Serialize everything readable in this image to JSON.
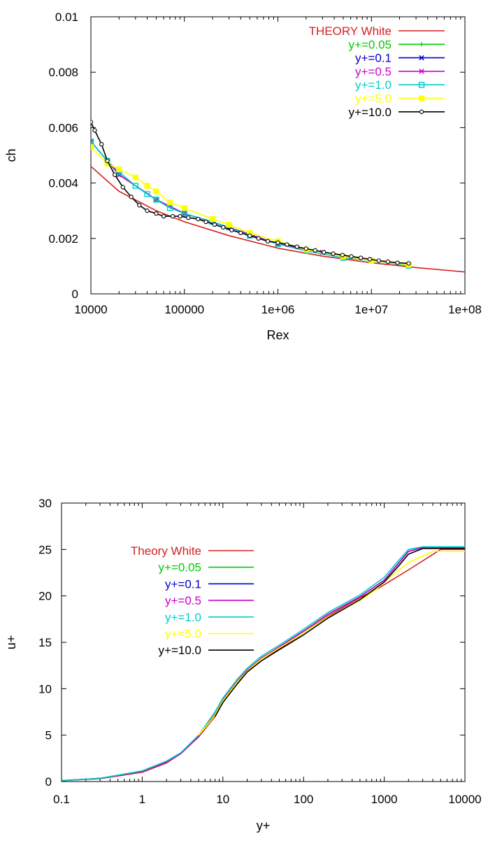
{
  "chart_data": [
    {
      "type": "line",
      "title": "",
      "xlabel": "Rex",
      "ylabel": "ch",
      "xscale": "log",
      "xlim": [
        10000,
        100000000
      ],
      "ylim": [
        0,
        0.01
      ],
      "xticks": [
        10000,
        100000,
        1000000,
        10000000,
        100000000
      ],
      "xtick_labels": [
        "10000",
        "100000",
        "1e+06",
        "1e+07",
        "1e+08"
      ],
      "yticks": [
        0,
        0.002,
        0.004,
        0.006,
        0.008,
        0.01
      ],
      "ytick_labels": [
        "0",
        "0.002",
        "0.004",
        "0.006",
        "0.008",
        "0.01"
      ],
      "legend_position": "top-right",
      "series": [
        {
          "name": "THEORY White",
          "color": "#d62020",
          "marker": "none",
          "x": [
            10000,
            20000,
            50000,
            100000,
            300000,
            1000000,
            3000000,
            10000000,
            30000000,
            100000000
          ],
          "y": [
            0.0046,
            0.0037,
            0.003,
            0.0026,
            0.0021,
            0.00165,
            0.00136,
            0.00112,
            0.00095,
            0.00079
          ]
        },
        {
          "name": "y+=0.05",
          "color": "#00cc00",
          "marker": "plus",
          "x": [
            10000,
            20000,
            50000,
            100000,
            300000,
            1000000,
            3000000,
            10000000,
            25000000
          ],
          "y": [
            0.0055,
            0.0043,
            0.0034,
            0.0029,
            0.0024,
            0.0018,
            0.0015,
            0.0012,
            0.00105
          ]
        },
        {
          "name": "y+=0.1",
          "color": "#0000cc",
          "marker": "x",
          "x": [
            10000,
            20000,
            50000,
            100000,
            300000,
            1000000,
            3000000,
            10000000,
            25000000
          ],
          "y": [
            0.0055,
            0.0043,
            0.0034,
            0.0029,
            0.0024,
            0.0018,
            0.0015,
            0.0012,
            0.00105
          ]
        },
        {
          "name": "y+=0.5",
          "color": "#cc00cc",
          "marker": "x",
          "x": [
            10000,
            20000,
            50000,
            100000,
            300000,
            1000000,
            3000000,
            10000000,
            25000000
          ],
          "y": [
            0.0055,
            0.0043,
            0.0034,
            0.0029,
            0.0024,
            0.0018,
            0.0015,
            0.0012,
            0.00105
          ]
        },
        {
          "name": "y+=1.0",
          "color": "#00cccc",
          "marker": "square",
          "x": [
            10000,
            15000,
            20000,
            30000,
            40000,
            50000,
            70000,
            100000,
            200000,
            300000,
            500000,
            1000000,
            2000000,
            5000000,
            10000000,
            25000000
          ],
          "y": [
            0.0055,
            0.0048,
            0.0044,
            0.0039,
            0.0036,
            0.0034,
            0.0031,
            0.0029,
            0.0026,
            0.0024,
            0.0021,
            0.0018,
            0.00155,
            0.0013,
            0.0012,
            0.00102
          ]
        },
        {
          "name": "y+=5.0",
          "color": "#ffff00",
          "marker": "filled-square",
          "x": [
            10000,
            15000,
            20000,
            30000,
            40000,
            50000,
            70000,
            100000,
            200000,
            300000,
            500000,
            1000000,
            2000000,
            5000000,
            10000000,
            25000000
          ],
          "y": [
            0.0053,
            0.0047,
            0.0045,
            0.0042,
            0.0039,
            0.0037,
            0.0033,
            0.0031,
            0.0027,
            0.0025,
            0.0022,
            0.0019,
            0.0016,
            0.00135,
            0.0012,
            0.00105
          ]
        },
        {
          "name": "y+=10.0",
          "color": "#000000",
          "marker": "circle",
          "x": [
            10000,
            11000,
            13000,
            15000,
            18000,
            22000,
            27000,
            33000,
            40000,
            50000,
            60000,
            75000,
            90000,
            110000,
            140000,
            170000,
            210000,
            260000,
            320000,
            400000,
            500000,
            620000,
            780000,
            1000000,
            1250000,
            1600000,
            2000000,
            2500000,
            3100000,
            3900000,
            4900000,
            6100000,
            7700000,
            9600000,
            12000000,
            15000000,
            19000000,
            25000000
          ],
          "y": [
            0.0062,
            0.0059,
            0.0054,
            0.0048,
            0.0043,
            0.00385,
            0.0035,
            0.0032,
            0.003,
            0.0029,
            0.0028,
            0.0028,
            0.0028,
            0.00275,
            0.0027,
            0.0026,
            0.0025,
            0.0024,
            0.0023,
            0.0022,
            0.0021,
            0.002,
            0.0019,
            0.00185,
            0.00178,
            0.0017,
            0.00163,
            0.00157,
            0.0015,
            0.00145,
            0.0014,
            0.00135,
            0.0013,
            0.00125,
            0.0012,
            0.00116,
            0.00112,
            0.0011
          ]
        }
      ]
    },
    {
      "type": "line",
      "title": "",
      "xlabel": "y+",
      "ylabel": "u+",
      "xscale": "log",
      "xlim": [
        0.1,
        10000
      ],
      "ylim": [
        0,
        30
      ],
      "xticks": [
        0.1,
        1,
        10,
        100,
        1000,
        10000
      ],
      "xtick_labels": [
        "0.1",
        "1",
        "10",
        "100",
        "1000",
        "10000"
      ],
      "yticks": [
        0,
        5,
        10,
        15,
        20,
        25,
        30
      ],
      "ytick_labels": [
        "0",
        "5",
        "10",
        "15",
        "20",
        "25",
        "30"
      ],
      "legend_position": "top-left",
      "series": [
        {
          "name": "Theory White",
          "color": "#d62020",
          "x": [
            0.1,
            0.3,
            1,
            2,
            3,
            5,
            8,
            10,
            15,
            20,
            30,
            50,
            100,
            200,
            500,
            800,
            1000,
            2000,
            5000,
            10000
          ],
          "y": [
            0.1,
            0.3,
            1,
            2,
            3,
            4.8,
            7,
            8.6,
            10.5,
            11.8,
            13,
            14.3,
            16,
            17.8,
            19.8,
            20.7,
            21.2,
            22.8,
            25,
            25
          ]
        },
        {
          "name": "y+=0.05",
          "color": "#00cc00",
          "x": [
            0.1,
            0.3,
            1,
            2,
            3,
            5,
            8,
            10,
            15,
            20,
            30,
            50,
            100,
            200,
            500,
            1000,
            1500,
            2000,
            3000,
            10000
          ],
          "y": [
            0.1,
            0.35,
            1.1,
            2.1,
            3,
            4.9,
            7.4,
            8.8,
            10.8,
            12,
            13.3,
            14.5,
            16.2,
            18,
            19.9,
            21.7,
            23.5,
            24.8,
            25.2,
            25.2
          ]
        },
        {
          "name": "y+=0.1",
          "color": "#0000cc",
          "x": [
            0.1,
            0.3,
            1,
            2,
            3,
            5,
            8,
            10,
            15,
            20,
            30,
            50,
            100,
            200,
            500,
            1000,
            1500,
            2000,
            3000,
            10000
          ],
          "y": [
            0.1,
            0.35,
            1.1,
            2.1,
            3,
            4.9,
            7.4,
            8.8,
            10.8,
            12,
            13.3,
            14.5,
            16.2,
            18,
            19.9,
            21.7,
            23.5,
            24.8,
            25.2,
            25.2
          ]
        },
        {
          "name": "y+=0.5",
          "color": "#cc00cc",
          "x": [
            0.1,
            0.3,
            1,
            2,
            3,
            5,
            8,
            10,
            15,
            20,
            30,
            50,
            100,
            200,
            500,
            1000,
            1500,
            2000,
            3000,
            10000
          ],
          "y": [
            0.1,
            0.35,
            1.1,
            2.1,
            3,
            4.9,
            7.4,
            8.8,
            10.8,
            12,
            13.3,
            14.5,
            16.2,
            18,
            19.9,
            21.7,
            23.5,
            24.8,
            25.2,
            25.2
          ]
        },
        {
          "name": "y+=1.0",
          "color": "#00cccc",
          "x": [
            0.1,
            0.3,
            1,
            2,
            3,
            5,
            8,
            10,
            15,
            20,
            30,
            50,
            100,
            200,
            500,
            1000,
            1500,
            2000,
            3000,
            10000
          ],
          "y": [
            0.1,
            0.35,
            1.15,
            2.2,
            3.1,
            5,
            7.5,
            9,
            11,
            12.2,
            13.5,
            14.7,
            16.4,
            18.2,
            20.1,
            22,
            23.8,
            25,
            25.3,
            25.3
          ]
        },
        {
          "name": "y+=5.0",
          "color": "#ffff00",
          "x": [
            5,
            7,
            8,
            10,
            15,
            20,
            30,
            50,
            100,
            200,
            500,
            800,
            1000,
            2000,
            4000,
            10000
          ],
          "y": [
            5,
            6.5,
            7.2,
            8.7,
            10.7,
            11.9,
            13.2,
            14.4,
            16,
            17.7,
            19.5,
            20.7,
            21.5,
            23.6,
            24.8,
            24.8
          ]
        },
        {
          "name": "y+=10.0",
          "color": "#000000",
          "x": [
            8,
            10,
            15,
            20,
            30,
            50,
            100,
            200,
            500,
            1000,
            1500,
            2000,
            3000,
            10000
          ],
          "y": [
            7,
            8.5,
            10.5,
            11.8,
            13,
            14.2,
            15.8,
            17.6,
            19.6,
            21.5,
            23.2,
            24.5,
            25.1,
            25.1
          ]
        }
      ]
    }
  ]
}
